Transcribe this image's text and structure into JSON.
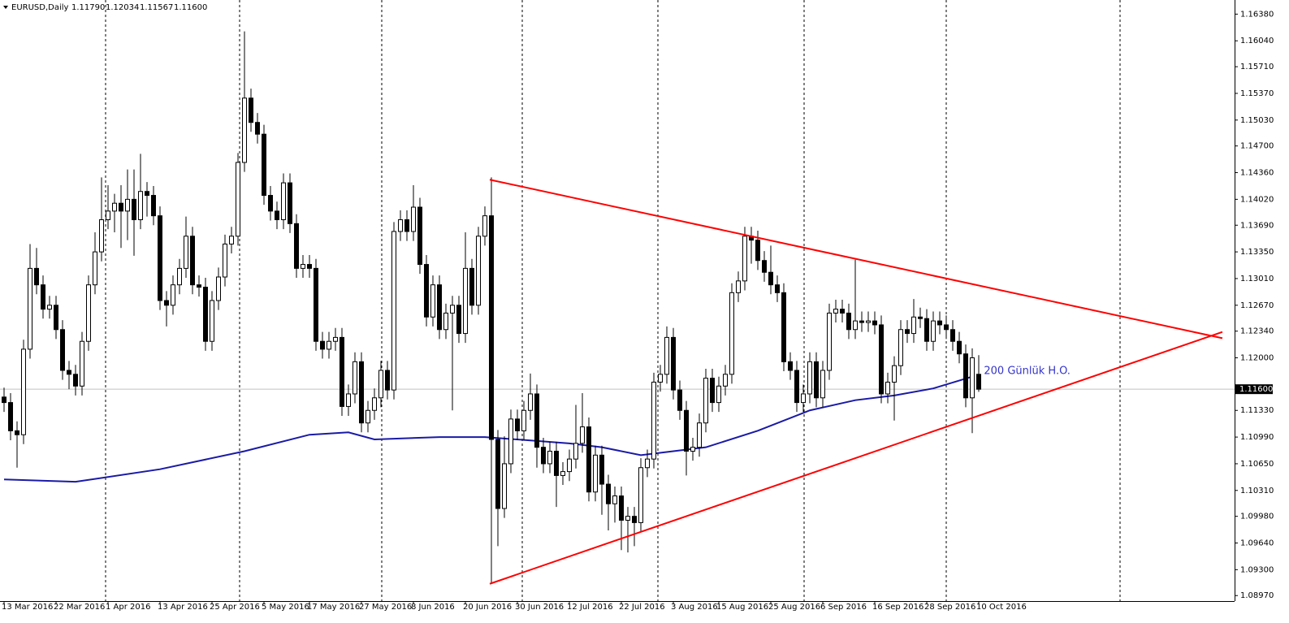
{
  "chart_data": {
    "type": "candlestick",
    "title": "EURUSD,Daily",
    "header_values": [
      "1.11790",
      "1.12034",
      "1.11567",
      "1.11600"
    ],
    "last_price": {
      "value": 1.116,
      "label": "1.11600"
    },
    "categories": [
      "13 Mar 2016",
      null,
      null,
      null,
      null,
      null,
      null,
      null,
      "22 Mar 2016",
      null,
      null,
      null,
      null,
      null,
      null,
      null,
      "1 Apr 2016",
      null,
      null,
      null,
      null,
      null,
      null,
      null,
      "13 Apr 2016",
      null,
      null,
      null,
      null,
      null,
      null,
      null,
      "25 Apr 2016",
      null,
      null,
      null,
      null,
      null,
      null,
      null,
      "5 May 2016",
      null,
      null,
      null,
      null,
      null,
      null,
      "17 May 2016",
      null,
      null,
      null,
      null,
      null,
      null,
      null,
      "27 May 2016",
      null,
      null,
      null,
      null,
      null,
      null,
      null,
      "8 Jun 2016",
      null,
      null,
      null,
      null,
      null,
      null,
      null,
      "20 Jun 2016",
      null,
      null,
      null,
      null,
      null,
      null,
      null,
      "30 Jun 2016",
      null,
      null,
      null,
      null,
      null,
      null,
      null,
      "12 Jul 2016",
      null,
      null,
      null,
      null,
      null,
      null,
      null,
      "22 Jul 2016",
      null,
      null,
      null,
      null,
      null,
      null,
      null,
      "3 Aug 2016",
      null,
      null,
      null,
      null,
      null,
      null,
      "15 Aug 2016",
      null,
      null,
      null,
      null,
      null,
      null,
      null,
      "25 Aug 2016",
      null,
      null,
      null,
      null,
      null,
      null,
      null,
      "6 Sep 2016",
      null,
      null,
      null,
      null,
      null,
      null,
      null,
      "16 Sep 2016",
      null,
      null,
      null,
      null,
      null,
      null,
      null,
      "28 Sep 2016",
      null,
      null,
      null,
      null,
      null,
      null,
      null,
      "10 Oct 2016"
    ],
    "open": [
      1.115,
      1.1143,
      1.1107,
      1.1102,
      1.1211,
      1.1314,
      1.1293,
      1.1262,
      1.1267,
      1.1236,
      1.1184,
      1.1179,
      1.1164,
      1.1221,
      1.1293,
      1.1335,
      1.1376,
      1.1387,
      1.1397,
      1.1387,
      1.1402,
      1.1376,
      1.1412,
      1.1407,
      1.1381,
      1.1273,
      1.1267,
      1.1293,
      1.1314,
      1.1355,
      1.1293,
      1.129,
      1.1221,
      1.1273,
      1.1303,
      1.1345,
      1.1355,
      1.1449,
      1.1531,
      1.15,
      1.1485,
      1.1407,
      1.1387,
      1.1376,
      1.1423,
      1.1371,
      1.1314,
      1.1319,
      1.1314,
      1.1221,
      1.1211,
      1.1221,
      1.1226,
      1.1138,
      1.1154,
      1.1195,
      1.1117,
      1.1133,
      1.1149,
      1.1184,
      1.1159,
      1.1361,
      1.1376,
      1.1361,
      1.1392,
      1.1319,
      1.1252,
      1.1293,
      1.1236,
      1.1257,
      1.1267,
      1.1231,
      1.1314,
      1.1267,
      1.1355,
      1.1381,
      1.1096,
      1.1008,
      1.1065,
      1.1122,
      1.1107,
      1.1133,
      1.1154,
      1.1086,
      1.1065,
      1.1081,
      1.105,
      1.1055,
      1.1071,
      1.1091,
      1.1112,
      1.1029,
      1.1076,
      1.1039,
      1.1014,
      1.1024,
      1.0993,
      1.0998,
      1.099,
      1.106,
      1.1071,
      1.1169,
      1.1179,
      1.1226,
      1.1159,
      1.1133,
      1.1081,
      1.1086,
      1.1117,
      1.1174,
      1.1143,
      1.1164,
      1.1179,
      1.1283,
      1.1298,
      1.1355,
      1.135,
      1.1324,
      1.1309,
      1.1293,
      1.1283,
      1.1195,
      1.1184,
      1.1143,
      1.1154,
      1.1195,
      1.1149,
      1.1184,
      1.1257,
      1.1262,
      1.1257,
      1.1236,
      1.1247,
      1.1245,
      1.1247,
      1.1242,
      1.1154,
      1.1169,
      1.119,
      1.1236,
      1.1231,
      1.1252,
      1.125,
      1.1221,
      1.1247,
      1.1242,
      1.1236,
      1.1221,
      1.1205,
      1.1149,
      1.1179
    ],
    "high": [
      1.1162,
      1.1155,
      1.1119,
      1.1223,
      1.1345,
      1.134,
      1.1305,
      1.1279,
      1.1279,
      1.1248,
      1.1196,
      1.1191,
      1.1233,
      1.1305,
      1.136,
      1.143,
      1.142,
      1.1409,
      1.142,
      1.144,
      1.144,
      1.146,
      1.1424,
      1.1419,
      1.1393,
      1.1285,
      1.1305,
      1.1326,
      1.138,
      1.1367,
      1.1305,
      1.1302,
      1.1285,
      1.1315,
      1.1357,
      1.1367,
      1.1461,
      1.1616,
      1.1543,
      1.1512,
      1.1497,
      1.1419,
      1.1399,
      1.1435,
      1.1435,
      1.1383,
      1.1331,
      1.1331,
      1.1326,
      1.1233,
      1.1233,
      1.1238,
      1.1238,
      1.1166,
      1.1207,
      1.1207,
      1.1145,
      1.1161,
      1.1196,
      1.1196,
      1.1373,
      1.1388,
      1.1388,
      1.142,
      1.1404,
      1.1331,
      1.1305,
      1.1305,
      1.1269,
      1.1279,
      1.1279,
      1.136,
      1.1326,
      1.1367,
      1.1393,
      1.143,
      1.1108,
      1.11,
      1.1134,
      1.1134,
      1.1145,
      1.118,
      1.1166,
      1.1098,
      1.1093,
      1.1093,
      1.1067,
      1.1083,
      1.114,
      1.1155,
      1.1124,
      1.1088,
      1.1088,
      1.1051,
      1.1036,
      1.1036,
      1.101,
      1.101,
      1.1072,
      1.1083,
      1.1181,
      1.1191,
      1.124,
      1.1238,
      1.1171,
      1.1145,
      1.1098,
      1.1129,
      1.1186,
      1.1186,
      1.1176,
      1.1191,
      1.1295,
      1.131,
      1.1367,
      1.1367,
      1.1362,
      1.1336,
      1.1343,
      1.1305,
      1.1295,
      1.1207,
      1.1196,
      1.1166,
      1.1207,
      1.1207,
      1.1196,
      1.1269,
      1.1274,
      1.1274,
      1.1269,
      1.1325,
      1.1259,
      1.1259,
      1.1259,
      1.1254,
      1.1181,
      1.1202,
      1.1248,
      1.1248,
      1.1275,
      1.1264,
      1.1262,
      1.1259,
      1.1259,
      1.1254,
      1.1248,
      1.1233,
      1.1217,
      1.1212,
      1.12034
    ],
    "low": [
      1.1131,
      1.1095,
      1.106,
      1.109,
      1.1199,
      1.1281,
      1.125,
      1.125,
      1.1224,
      1.1172,
      1.116,
      1.1152,
      1.1152,
      1.1209,
      1.1281,
      1.1323,
      1.1364,
      1.136,
      1.134,
      1.135,
      1.133,
      1.1364,
      1.138,
      1.1369,
      1.1261,
      1.124,
      1.1255,
      1.1281,
      1.1302,
      1.1281,
      1.1278,
      1.1209,
      1.1209,
      1.1261,
      1.1291,
      1.1333,
      1.1343,
      1.1437,
      1.1488,
      1.1473,
      1.1395,
      1.1375,
      1.1364,
      1.1364,
      1.1359,
      1.1302,
      1.1302,
      1.1302,
      1.1209,
      1.1199,
      1.1199,
      1.1209,
      1.1126,
      1.1126,
      1.1142,
      1.1105,
      1.1105,
      1.1121,
      1.1137,
      1.1147,
      1.1147,
      1.1349,
      1.1349,
      1.1349,
      1.1307,
      1.124,
      1.124,
      1.1224,
      1.1224,
      1.1133,
      1.1219,
      1.1219,
      1.1255,
      1.1255,
      1.1343,
      1.0912,
      1.096,
      1.0996,
      1.1053,
      1.1095,
      1.1095,
      1.1121,
      1.106,
      1.1053,
      1.1053,
      1.101,
      1.1038,
      1.1043,
      1.1059,
      1.1079,
      1.1017,
      1.1017,
      1.1,
      1.098,
      1.099,
      1.0955,
      1.0952,
      1.096,
      1.0978,
      1.1048,
      1.1059,
      1.1157,
      1.1167,
      1.1147,
      1.1121,
      1.105,
      1.1069,
      1.1074,
      1.1105,
      1.1131,
      1.1131,
      1.1152,
      1.1167,
      1.1271,
      1.1286,
      1.132,
      1.1312,
      1.1297,
      1.1281,
      1.1271,
      1.1183,
      1.1172,
      1.1131,
      1.1131,
      1.1142,
      1.1137,
      1.1137,
      1.1172,
      1.1245,
      1.1245,
      1.1224,
      1.1224,
      1.1233,
      1.1233,
      1.123,
      1.1142,
      1.1142,
      1.112,
      1.1178,
      1.1219,
      1.1219,
      1.1238,
      1.1209,
      1.1209,
      1.123,
      1.1224,
      1.1209,
      1.1193,
      1.1137,
      1.1104,
      1.11567
    ],
    "close": [
      1.1143,
      1.1107,
      1.1102,
      1.1211,
      1.1314,
      1.1293,
      1.1262,
      1.1267,
      1.1236,
      1.1184,
      1.1179,
      1.1164,
      1.1221,
      1.1293,
      1.1335,
      1.1376,
      1.1387,
      1.1397,
      1.1387,
      1.1402,
      1.1376,
      1.1412,
      1.1407,
      1.1381,
      1.1273,
      1.1267,
      1.1293,
      1.1314,
      1.1355,
      1.1293,
      1.129,
      1.1221,
      1.1273,
      1.1303,
      1.1345,
      1.1355,
      1.1449,
      1.1531,
      1.15,
      1.1485,
      1.1407,
      1.1387,
      1.1376,
      1.1423,
      1.1371,
      1.1314,
      1.1319,
      1.1314,
      1.1221,
      1.1211,
      1.1221,
      1.1226,
      1.1138,
      1.1154,
      1.1195,
      1.1117,
      1.1133,
      1.1149,
      1.1184,
      1.1159,
      1.1361,
      1.1376,
      1.1361,
      1.1392,
      1.1319,
      1.1252,
      1.1293,
      1.1236,
      1.1257,
      1.1267,
      1.1231,
      1.1314,
      1.1267,
      1.1355,
      1.1381,
      1.1096,
      1.1008,
      1.1065,
      1.1122,
      1.1107,
      1.1133,
      1.1154,
      1.1086,
      1.1065,
      1.1081,
      1.105,
      1.1055,
      1.1071,
      1.1091,
      1.1112,
      1.1029,
      1.1076,
      1.1039,
      1.1014,
      1.1024,
      1.0993,
      1.0998,
      1.099,
      1.106,
      1.1071,
      1.1169,
      1.1179,
      1.1226,
      1.1159,
      1.1133,
      1.1081,
      1.1086,
      1.1117,
      1.1174,
      1.1143,
      1.1164,
      1.1179,
      1.1283,
      1.1298,
      1.1355,
      1.135,
      1.1324,
      1.1309,
      1.1293,
      1.1283,
      1.1195,
      1.1184,
      1.1143,
      1.1154,
      1.1195,
      1.1149,
      1.1184,
      1.1257,
      1.1262,
      1.1257,
      1.1236,
      1.1247,
      1.1245,
      1.1247,
      1.1242,
      1.1154,
      1.1169,
      1.119,
      1.1236,
      1.1231,
      1.1252,
      1.125,
      1.1221,
      1.1247,
      1.1242,
      1.1236,
      1.1221,
      1.1205,
      1.1149,
      1.12,
      1.116
    ],
    "moving_average": {
      "color": "#1a1aa6",
      "x": [
        0,
        11,
        24,
        37,
        47,
        53,
        57,
        67,
        74,
        87,
        92,
        98,
        103,
        108,
        116,
        124,
        131,
        137,
        143,
        149
      ],
      "values": [
        1.1045,
        1.1042,
        1.1058,
        1.1081,
        1.1102,
        1.1105,
        1.1096,
        1.1099,
        1.1099,
        1.1091,
        1.1086,
        1.1076,
        1.1081,
        1.1086,
        1.1107,
        1.1133,
        1.1146,
        1.1152,
        1.1161,
        1.1176
      ]
    },
    "trendlines": [
      {
        "color": "#ff0000",
        "x": [
          74.75,
          187.5
        ],
        "values": [
          1.1427,
          1.1225
        ]
      },
      {
        "color": "#ff0000",
        "x": [
          74.75,
          187.5
        ],
        "values": [
          1.0912,
          1.1233
        ]
      }
    ],
    "annotation": {
      "text": "200 Günlük H.O.",
      "color": "#3333cc",
      "x": 150.8,
      "value": 1.1183
    },
    "ylim": [
      1.089,
      1.1656
    ],
    "yticks": [
      {
        "value": 1.1638,
        "label": "1.16380"
      },
      {
        "value": 1.1604,
        "label": "1.16040"
      },
      {
        "value": 1.1571,
        "label": "1.15710"
      },
      {
        "value": 1.1537,
        "label": "1.15370"
      },
      {
        "value": 1.1503,
        "label": "1.15030"
      },
      {
        "value": 1.147,
        "label": "1.14700"
      },
      {
        "value": 1.1436,
        "label": "1.14360"
      },
      {
        "value": 1.1402,
        "label": "1.14020"
      },
      {
        "value": 1.1369,
        "label": "1.13690"
      },
      {
        "value": 1.1335,
        "label": "1.13350"
      },
      {
        "value": 1.1301,
        "label": "1.13010"
      },
      {
        "value": 1.1267,
        "label": "1.12670"
      },
      {
        "value": 1.1234,
        "label": "1.12340"
      },
      {
        "value": 1.12,
        "label": "1.12000"
      },
      {
        "value": 1.1133,
        "label": "1.11330"
      },
      {
        "value": 1.1099,
        "label": "1.10990"
      },
      {
        "value": 1.1065,
        "label": "1.10650"
      },
      {
        "value": 1.1031,
        "label": "1.10310"
      },
      {
        "value": 1.0998,
        "label": "1.09980"
      },
      {
        "value": 1.0964,
        "label": "1.09640"
      },
      {
        "value": 1.093,
        "label": "1.09300"
      },
      {
        "value": 1.0897,
        "label": "1.08970"
      }
    ]
  }
}
